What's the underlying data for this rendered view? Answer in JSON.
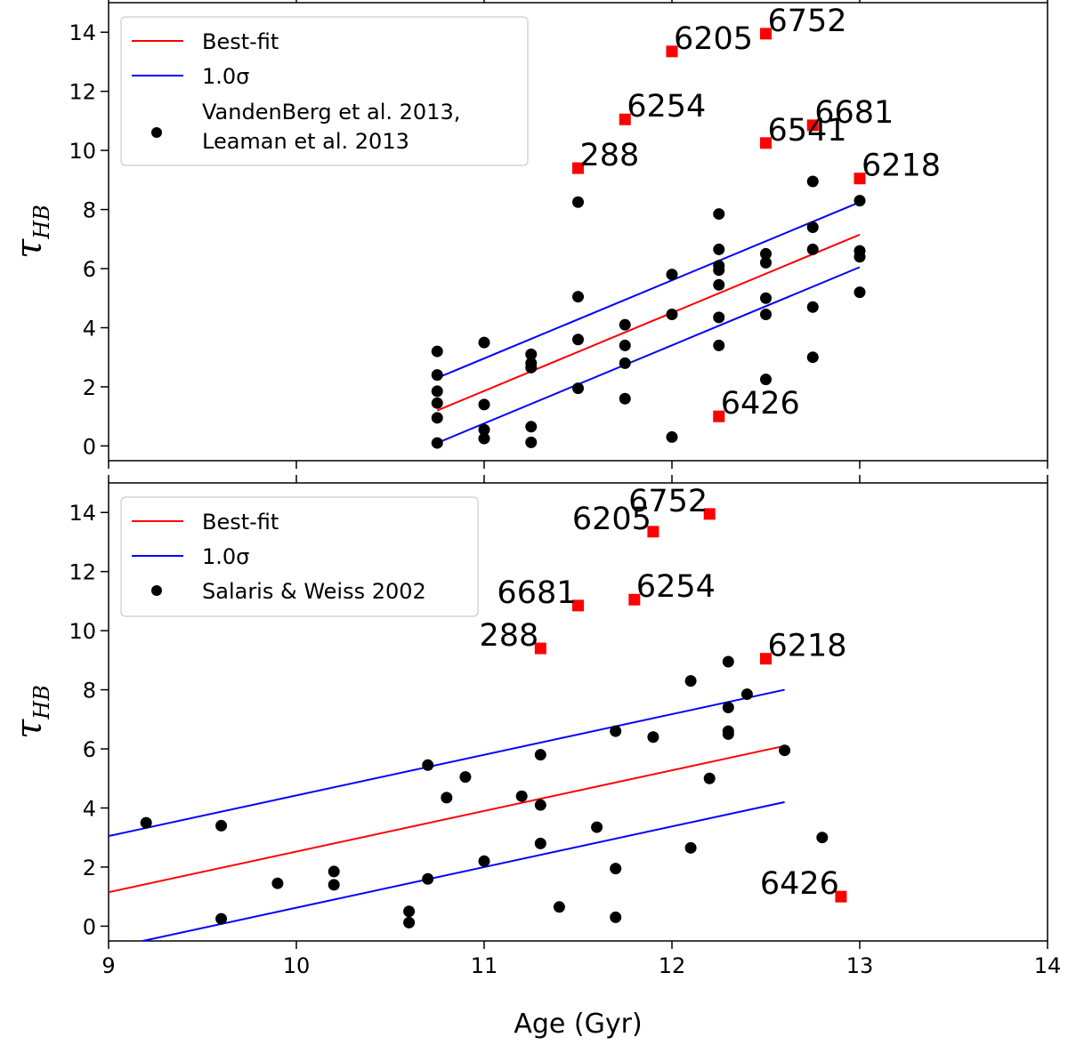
{
  "chart_data": [
    {
      "type": "scatter",
      "panel": "top",
      "xlim": [
        9,
        14
      ],
      "ylim": [
        -0.5,
        15
      ],
      "xticks": [
        "9",
        "10",
        "11",
        "12",
        "13",
        "14"
      ],
      "show_xtick_labels": false,
      "yticks": [
        "0",
        "2",
        "4",
        "6",
        "8",
        "10",
        "12",
        "14"
      ],
      "ylabel": {
        "main": "τ",
        "sub": "HB"
      },
      "xlabel": "",
      "legend_position": "top-left",
      "legend": {
        "best_fit": "Best-fit",
        "sigma": "1.0σ",
        "points_line1": "VandenBerg et al. 2013,",
        "points_line2": " Leaman et al. 2013"
      },
      "colors": {
        "best_fit": "#ff0000",
        "sigma": "#0000ff",
        "points": "#000000",
        "outliers": "#ff0000"
      },
      "fit_lines": {
        "best_fit": {
          "x": [
            10.75,
            13.0
          ],
          "y": [
            1.2,
            7.15
          ]
        },
        "upper_sigma": {
          "x": [
            10.75,
            13.0
          ],
          "y": [
            2.3,
            8.25
          ]
        },
        "lower_sigma": {
          "x": [
            10.75,
            13.0
          ],
          "y": [
            0.1,
            6.05
          ]
        }
      },
      "points": [
        [
          10.75,
          3.2
        ],
        [
          10.75,
          2.4
        ],
        [
          10.75,
          1.85
        ],
        [
          10.75,
          1.45
        ],
        [
          10.75,
          0.95
        ],
        [
          10.75,
          0.1
        ],
        [
          11.0,
          3.5
        ],
        [
          11.0,
          1.4
        ],
        [
          11.0,
          0.55
        ],
        [
          11.0,
          0.25
        ],
        [
          11.25,
          3.1
        ],
        [
          11.25,
          2.8
        ],
        [
          11.25,
          2.65
        ],
        [
          11.25,
          0.65
        ],
        [
          11.25,
          0.12
        ],
        [
          11.5,
          8.25
        ],
        [
          11.5,
          5.05
        ],
        [
          11.5,
          3.6
        ],
        [
          11.5,
          1.95
        ],
        [
          11.75,
          4.1
        ],
        [
          11.75,
          3.4
        ],
        [
          11.75,
          2.8
        ],
        [
          11.75,
          1.6
        ],
        [
          12.0,
          5.8
        ],
        [
          12.0,
          4.45
        ],
        [
          12.0,
          0.3
        ],
        [
          12.25,
          7.85
        ],
        [
          12.25,
          6.65
        ],
        [
          12.25,
          6.1
        ],
        [
          12.25,
          5.95
        ],
        [
          12.25,
          5.45
        ],
        [
          12.25,
          4.35
        ],
        [
          12.25,
          3.4
        ],
        [
          12.5,
          6.5
        ],
        [
          12.5,
          6.2
        ],
        [
          12.5,
          5.0
        ],
        [
          12.5,
          4.45
        ],
        [
          12.5,
          2.25
        ],
        [
          12.75,
          8.95
        ],
        [
          12.75,
          7.4
        ],
        [
          12.75,
          6.65
        ],
        [
          12.75,
          4.7
        ],
        [
          12.75,
          3.0
        ],
        [
          13.0,
          8.3
        ],
        [
          13.0,
          6.6
        ],
        [
          13.0,
          6.4
        ],
        [
          13.0,
          5.2
        ]
      ],
      "outliers": [
        {
          "label": "6205",
          "x": 12.0,
          "y": 13.35,
          "anchor": "after"
        },
        {
          "label": "6752",
          "x": 12.5,
          "y": 13.95,
          "anchor": "after"
        },
        {
          "label": "6254",
          "x": 11.75,
          "y": 11.05,
          "anchor": "after"
        },
        {
          "label": "6681",
          "x": 12.75,
          "y": 10.85,
          "anchor": "after"
        },
        {
          "label": "288",
          "x": 11.5,
          "y": 9.4,
          "anchor": "after"
        },
        {
          "label": "6541",
          "x": 12.5,
          "y": 10.25,
          "anchor": "after"
        },
        {
          "label": "6218",
          "x": 13.0,
          "y": 9.05,
          "anchor": "after"
        },
        {
          "label": "6426",
          "x": 12.25,
          "y": 1.0,
          "anchor": "after"
        }
      ]
    },
    {
      "type": "scatter",
      "panel": "bottom",
      "xlim": [
        9,
        14
      ],
      "ylim": [
        -0.5,
        15
      ],
      "xticks": [
        "9",
        "10",
        "11",
        "12",
        "13",
        "14"
      ],
      "show_xtick_labels": true,
      "yticks": [
        "0",
        "2",
        "4",
        "6",
        "8",
        "10",
        "12",
        "14"
      ],
      "ylabel": {
        "main": "τ",
        "sub": "HB"
      },
      "xlabel": "Age (Gyr)",
      "legend_position": "top-left",
      "legend": {
        "best_fit": "Best-fit",
        "sigma": "1.0σ",
        "points_line1": "Salaris & Weiss 2002",
        "points_line2": ""
      },
      "colors": {
        "best_fit": "#ff0000",
        "sigma": "#0000ff",
        "points": "#000000",
        "outliers": "#ff0000"
      },
      "fit_lines": {
        "best_fit": {
          "x": [
            9.0,
            12.6
          ],
          "y": [
            1.15,
            6.1
          ]
        },
        "upper_sigma": {
          "x": [
            9.0,
            12.6
          ],
          "y": [
            3.05,
            8.0
          ]
        },
        "lower_sigma": {
          "x": [
            9.0,
            12.6
          ],
          "y": [
            -0.75,
            4.2
          ]
        }
      },
      "points": [
        [
          9.2,
          3.5
        ],
        [
          9.6,
          3.4
        ],
        [
          9.6,
          0.25
        ],
        [
          9.9,
          1.45
        ],
        [
          10.2,
          1.85
        ],
        [
          10.2,
          1.4
        ],
        [
          10.6,
          0.5
        ],
        [
          10.6,
          0.12
        ],
        [
          10.7,
          5.45
        ],
        [
          10.7,
          1.6
        ],
        [
          10.8,
          4.35
        ],
        [
          10.9,
          5.05
        ],
        [
          11.0,
          2.2
        ],
        [
          11.2,
          4.4
        ],
        [
          11.3,
          5.8
        ],
        [
          11.3,
          4.1
        ],
        [
          11.3,
          2.8
        ],
        [
          11.4,
          0.65
        ],
        [
          11.6,
          3.35
        ],
        [
          11.7,
          6.6
        ],
        [
          11.7,
          1.95
        ],
        [
          11.7,
          0.3
        ],
        [
          11.9,
          6.4
        ],
        [
          12.1,
          8.3
        ],
        [
          12.1,
          2.65
        ],
        [
          12.2,
          5.0
        ],
        [
          12.3,
          8.95
        ],
        [
          12.3,
          7.4
        ],
        [
          12.3,
          6.6
        ],
        [
          12.3,
          6.5
        ],
        [
          12.4,
          7.85
        ],
        [
          12.6,
          5.95
        ],
        [
          12.8,
          3.0
        ]
      ],
      "outliers": [
        {
          "label": "6752",
          "x": 12.2,
          "y": 13.95,
          "anchor": "before"
        },
        {
          "label": "6205",
          "x": 11.9,
          "y": 13.35,
          "anchor": "before"
        },
        {
          "label": "6681",
          "x": 11.5,
          "y": 10.85,
          "anchor": "before"
        },
        {
          "label": "6254",
          "x": 11.8,
          "y": 11.05,
          "anchor": "after"
        },
        {
          "label": "288",
          "x": 11.3,
          "y": 9.4,
          "anchor": "before"
        },
        {
          "label": "6218",
          "x": 12.5,
          "y": 9.05,
          "anchor": "after"
        },
        {
          "label": "6426",
          "x": 12.9,
          "y": 1.0,
          "anchor": "before"
        }
      ]
    }
  ]
}
